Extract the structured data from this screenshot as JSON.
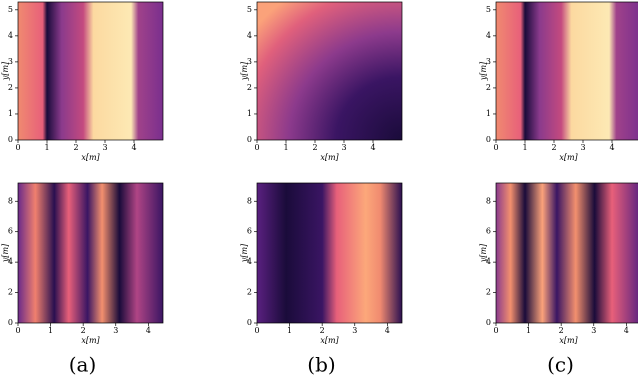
{
  "chart_data": [
    {
      "type": "heatmap",
      "xlabel": "x[m]",
      "ylabel": "y[m]",
      "xlim": [
        0,
        5
      ],
      "ylim": [
        0,
        5.3
      ],
      "xticks": [
        0,
        1,
        2,
        3,
        4
      ],
      "yticks": [
        0,
        1,
        2,
        3,
        4,
        5
      ]
    },
    {
      "type": "heatmap",
      "xlabel": "x[m]",
      "ylabel": "y[m]",
      "xlim": [
        0,
        5
      ],
      "ylim": [
        0,
        5.3
      ],
      "xticks": [
        0,
        1,
        2,
        3,
        4
      ],
      "yticks": [
        0,
        1,
        2,
        3,
        4,
        5
      ]
    },
    {
      "type": "heatmap",
      "xlabel": "x[m]",
      "ylabel": "y[m]",
      "xlim": [
        0,
        5
      ],
      "ylim": [
        0,
        5.3
      ],
      "xticks": [
        0,
        1,
        2,
        3,
        4
      ],
      "yticks": [
        0,
        1,
        2,
        3,
        4,
        5
      ]
    },
    {
      "type": "heatmap",
      "xlabel": "x[m]",
      "ylabel": "y[m]",
      "xlim": [
        0,
        4.45
      ],
      "ylim": [
        0,
        9.2
      ],
      "xticks": [
        0,
        1,
        2,
        3,
        4
      ],
      "yticks": [
        0,
        2,
        4,
        6,
        8
      ]
    },
    {
      "type": "heatmap",
      "xlabel": "x[m]",
      "ylabel": "y[m]",
      "xlim": [
        0,
        4.45
      ],
      "ylim": [
        0,
        9.2
      ],
      "xticks": [
        0,
        1,
        2,
        3,
        4
      ],
      "yticks": [
        0,
        2,
        4,
        6,
        8
      ]
    },
    {
      "type": "heatmap",
      "xlabel": "x[m]",
      "ylabel": "y[m]",
      "xlim": [
        0,
        4.45
      ],
      "ylim": [
        0,
        9.2
      ],
      "xticks": [
        0,
        1,
        2,
        3,
        4
      ],
      "yticks": [
        0,
        2,
        4,
        6,
        8
      ]
    }
  ],
  "captions": [
    "(a)",
    "(b)",
    "(c)"
  ]
}
